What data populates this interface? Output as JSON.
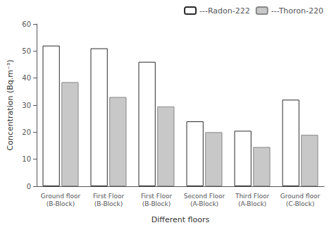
{
  "chart_data": {
    "type": "bar",
    "xlabel": "Different floors",
    "ylabel": "Concentration (Bq.m⁻³)",
    "categories": [
      "Ground floor\n(B-Block)",
      "First Floor\n(B-Block)",
      "First Floor\n(B-Block)",
      "Second Floor\n(A-Block)",
      "Third Floor\n(A-Block)",
      "Ground floor\n(C-Block)"
    ],
    "series": [
      {
        "name": "---Radon-222",
        "color": "#ffffff",
        "values": [
          52,
          51,
          46,
          24,
          20.5,
          32
        ]
      },
      {
        "name": "---Thoron-220",
        "color": "#c8c8c8",
        "values": [
          38.5,
          33,
          29.5,
          20,
          14.5,
          19
        ]
      }
    ],
    "ylim": [
      0,
      60
    ],
    "yticks": [
      0,
      10,
      20,
      30,
      40,
      50,
      60
    ],
    "grid": false,
    "legend": "upper right"
  }
}
